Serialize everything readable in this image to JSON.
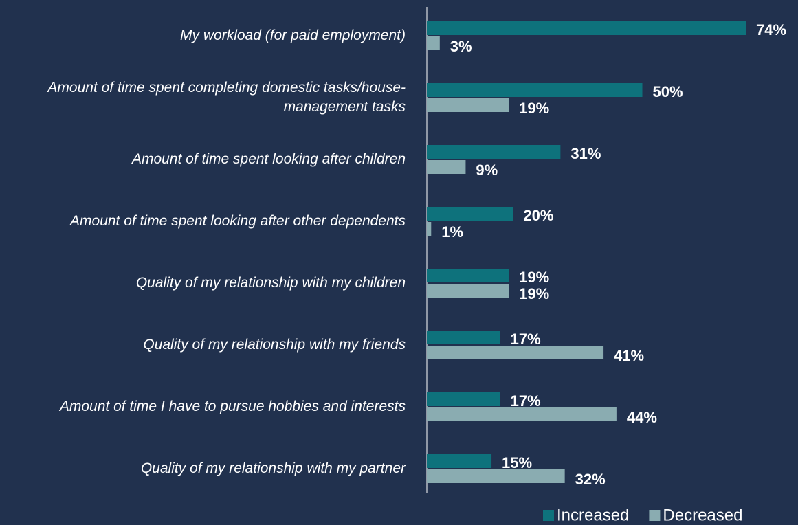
{
  "chart_data": {
    "type": "bar",
    "orientation": "horizontal",
    "categories": [
      "My workload (for paid employment)",
      "Amount of time spent completing domestic tasks/house-management tasks",
      "Amount of time spent looking after children",
      "Amount of time spent looking after other dependents",
      "Quality of my relationship with my children",
      "Quality of my relationship with my friends",
      "Amount of time I have to pursue hobbies and interests",
      "Quality of my relationship with my partner"
    ],
    "series": [
      {
        "name": "Increased",
        "color": "#0e727c",
        "values": [
          74,
          50,
          31,
          20,
          19,
          17,
          17,
          15
        ],
        "value_labels": [
          "74%",
          "50%",
          "31%",
          "20%",
          "19%",
          "17%",
          "17%",
          "15%"
        ]
      },
      {
        "name": "Decreased",
        "color": "#8aacb1",
        "values": [
          3,
          19,
          9,
          1,
          19,
          41,
          44,
          32
        ],
        "value_labels": [
          "3%",
          "19%",
          "9%",
          "1%",
          "19%",
          "41%",
          "44%",
          "32%"
        ]
      }
    ],
    "xlim": [
      0,
      74
    ],
    "legend": "bottom-right"
  }
}
